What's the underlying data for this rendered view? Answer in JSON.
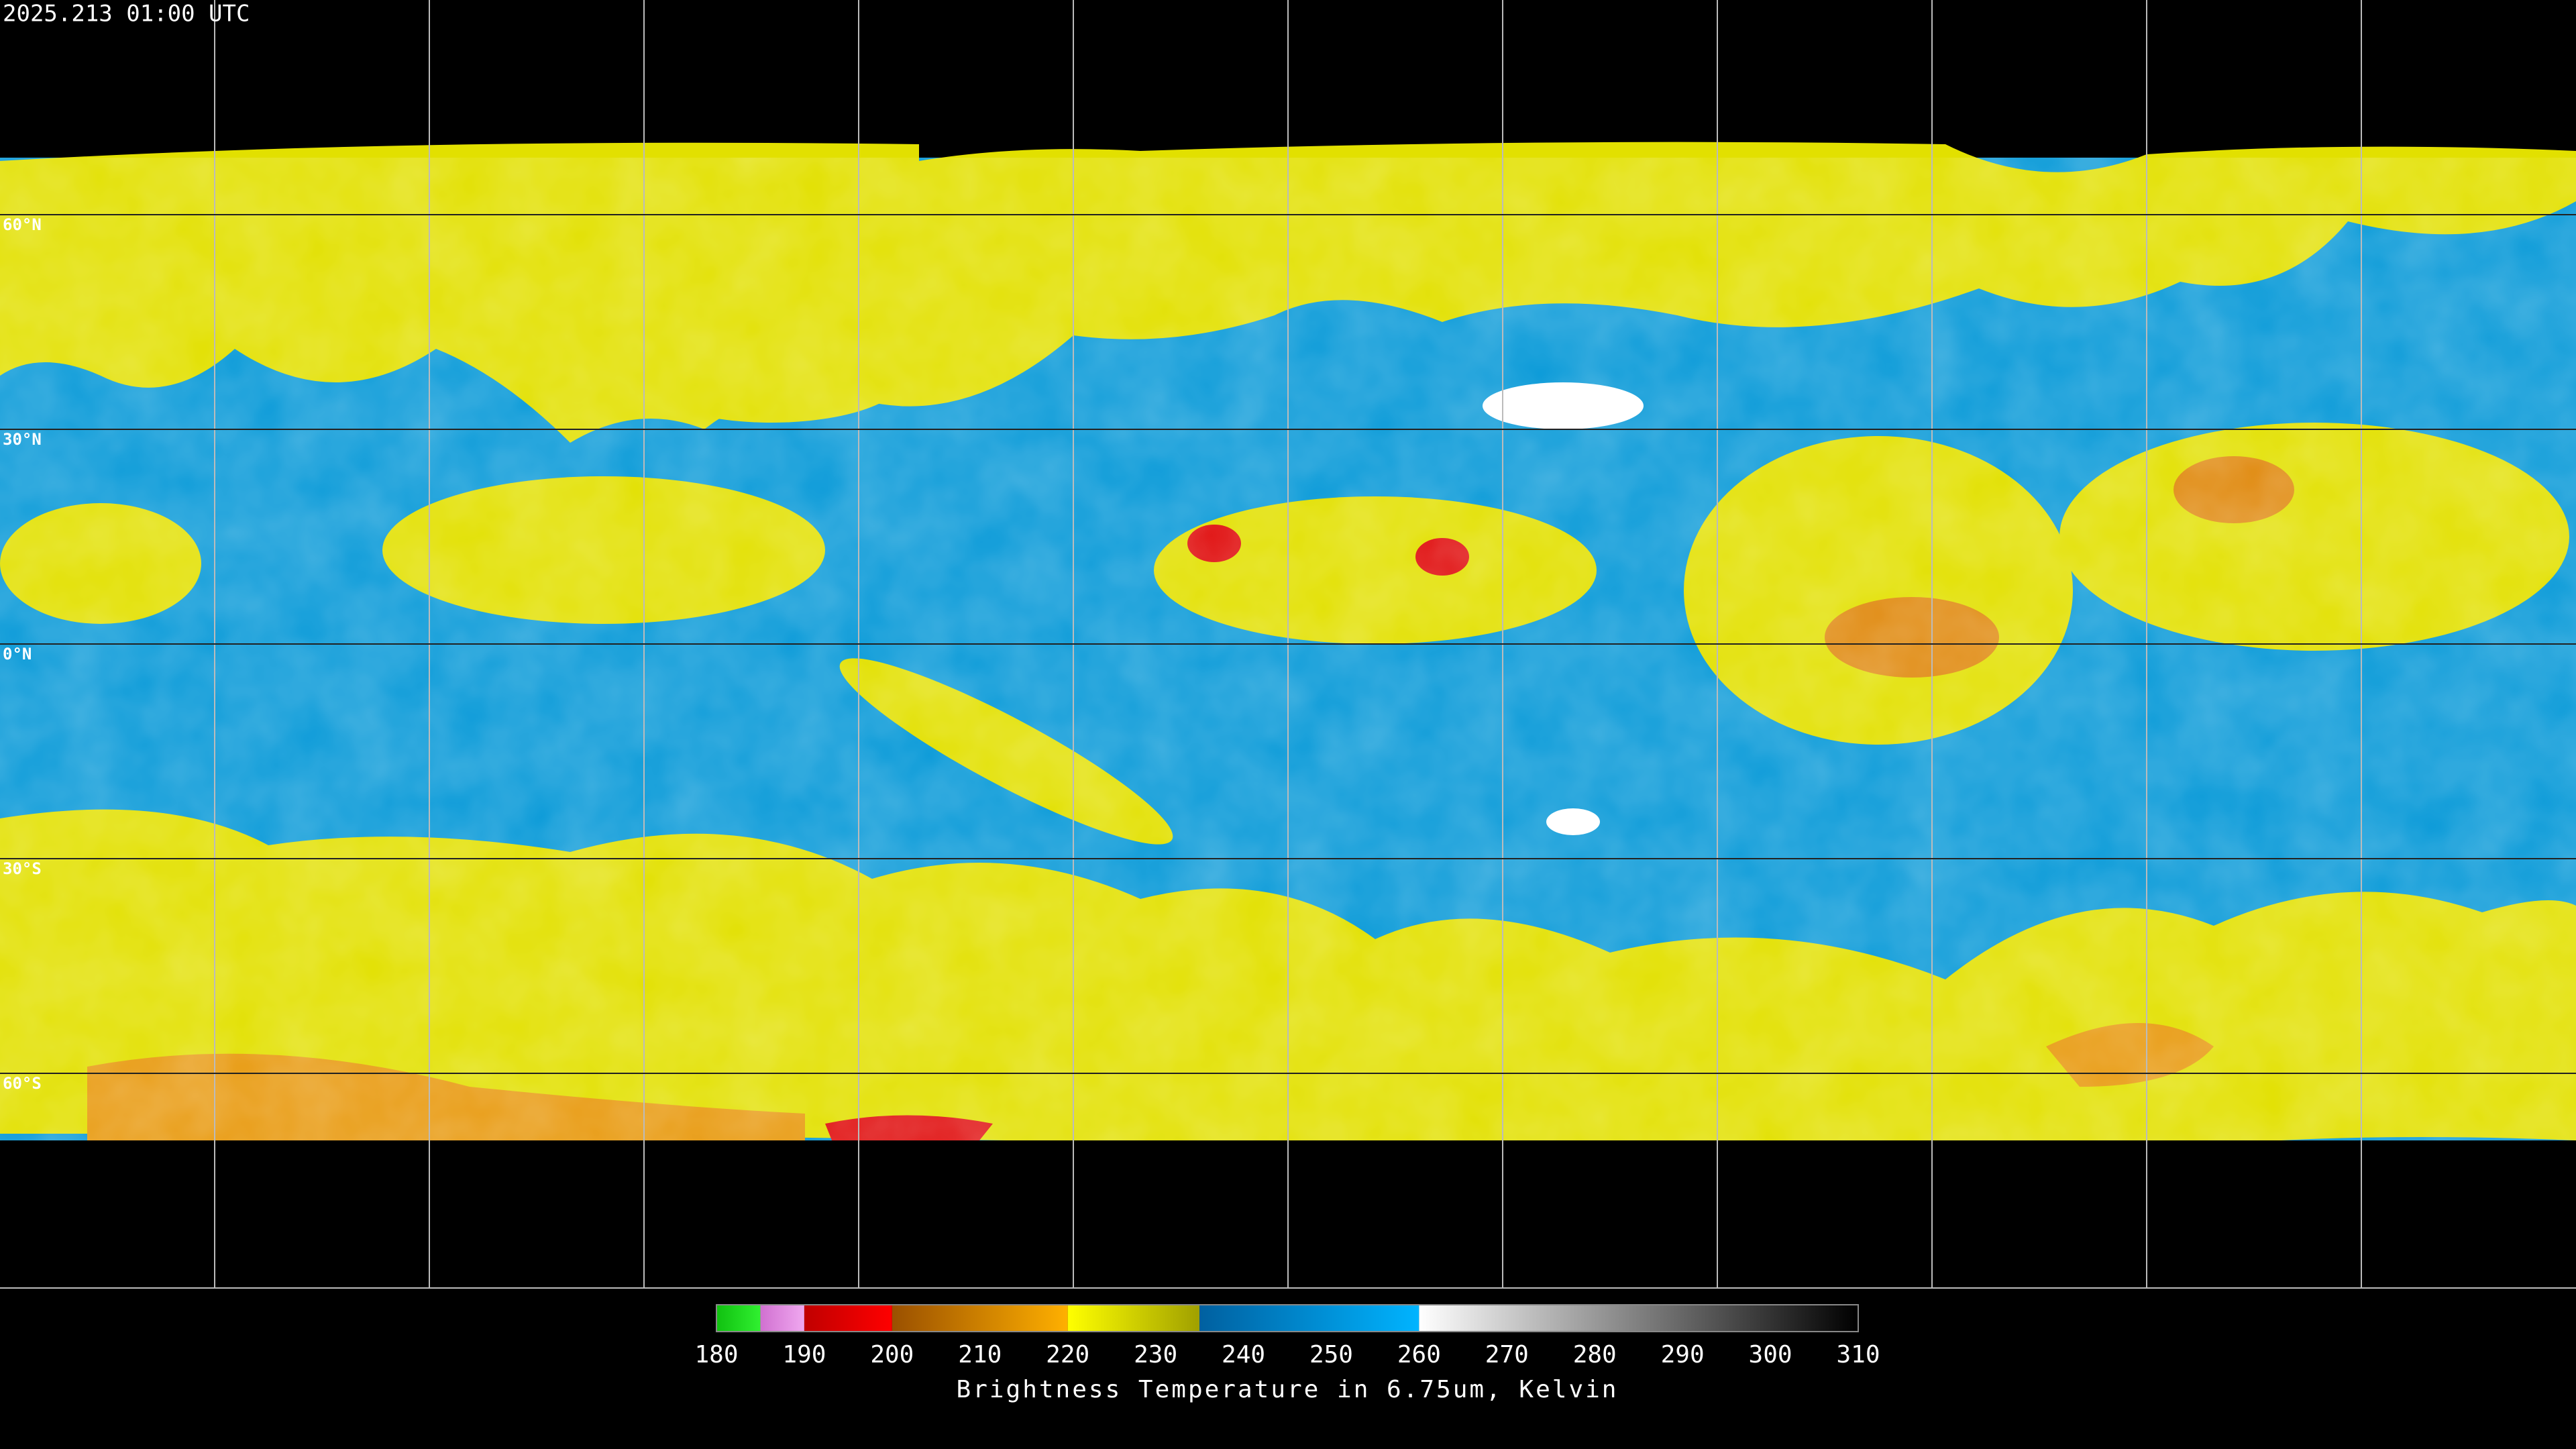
{
  "timestamp": "2025.213 01:00 UTC",
  "latitude_labels": [
    "60°N",
    "30°N",
    "0°N",
    "30°S",
    "60°S"
  ],
  "colorbar": {
    "label": "Brightness Temperature in 6.75um, Kelvin",
    "lim": [
      180,
      310
    ],
    "ticks": [
      180,
      190,
      200,
      210,
      220,
      230,
      240,
      250,
      260,
      270,
      280,
      290,
      300,
      310
    ],
    "segments": [
      {
        "range": [
          180,
          185
        ],
        "colors": [
          "#10c010",
          "#30f030"
        ]
      },
      {
        "range": [
          185,
          190
        ],
        "colors": [
          "#d070d0",
          "#f0a8f0"
        ]
      },
      {
        "range": [
          190,
          200
        ],
        "colors": [
          "#c00000",
          "#ff0000"
        ]
      },
      {
        "range": [
          200,
          220
        ],
        "colors": [
          "#9a5000",
          "#ffb000"
        ]
      },
      {
        "range": [
          220,
          235
        ],
        "colors": [
          "#ffff00",
          "#a0a000"
        ]
      },
      {
        "range": [
          235,
          260
        ],
        "colors": [
          "#0060a0",
          "#00b4ff"
        ]
      },
      {
        "range": [
          260,
          310
        ],
        "colors": [
          "#ffffff",
          "#000000"
        ]
      }
    ]
  }
}
